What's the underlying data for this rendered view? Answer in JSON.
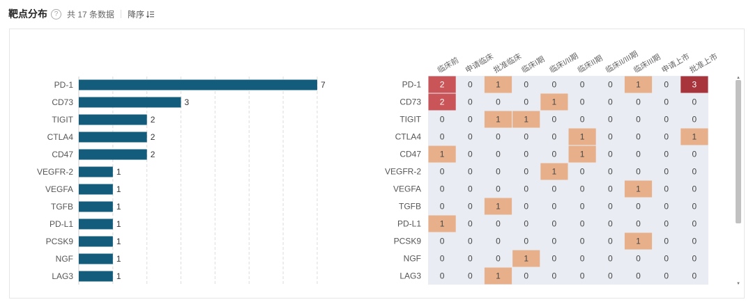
{
  "header": {
    "title": "靶点分布",
    "help_icon": "question-circle-icon",
    "count_text": "共 17 条数据",
    "sort_label": "降序",
    "sort_icon": "sort-descending-icon"
  },
  "colors": {
    "bar": "#135c7b",
    "heat_zero": "#e9edf3",
    "heat_one": "#e8b08a",
    "heat_two": "#c95558",
    "heat_three": "#a8343c"
  },
  "chart_data": [
    {
      "type": "bar",
      "orientation": "horizontal",
      "categories": [
        "PD-1",
        "CD73",
        "TIGIT",
        "CTLA4",
        "CD47",
        "VEGFR-2",
        "VEGFA",
        "TGFB",
        "PD-L1",
        "PCSK9",
        "NGF",
        "LAG3"
      ],
      "values": [
        7,
        3,
        2,
        2,
        2,
        1,
        1,
        1,
        1,
        1,
        1,
        1
      ],
      "xlim": [
        0,
        7
      ],
      "grid": "vertical dashed"
    },
    {
      "type": "heatmap",
      "columns": [
        "临床前",
        "申请临床",
        "批准临床",
        "临床I期",
        "临床I/II期",
        "临床II期",
        "临床II/III期",
        "临床III期",
        "申请上市",
        "批准上市"
      ],
      "rows": [
        "PD-1",
        "CD73",
        "TIGIT",
        "CTLA4",
        "CD47",
        "VEGFR-2",
        "VEGFA",
        "TGFB",
        "PD-L1",
        "PCSK9",
        "NGF",
        "LAG3"
      ],
      "values": [
        [
          2,
          0,
          1,
          0,
          0,
          0,
          0,
          1,
          0,
          3
        ],
        [
          2,
          0,
          0,
          0,
          1,
          0,
          0,
          0,
          0,
          0
        ],
        [
          0,
          0,
          1,
          1,
          0,
          0,
          0,
          0,
          0,
          0
        ],
        [
          0,
          0,
          0,
          0,
          0,
          1,
          0,
          0,
          0,
          1
        ],
        [
          1,
          0,
          0,
          0,
          0,
          1,
          0,
          0,
          0,
          0
        ],
        [
          0,
          0,
          0,
          0,
          1,
          0,
          0,
          0,
          0,
          0
        ],
        [
          0,
          0,
          0,
          0,
          0,
          0,
          0,
          1,
          0,
          0
        ],
        [
          0,
          0,
          1,
          0,
          0,
          0,
          0,
          0,
          0,
          0
        ],
        [
          1,
          0,
          0,
          0,
          0,
          0,
          0,
          0,
          0,
          0
        ],
        [
          0,
          0,
          0,
          0,
          0,
          0,
          0,
          1,
          0,
          0
        ],
        [
          0,
          0,
          0,
          1,
          0,
          0,
          0,
          0,
          0,
          0
        ],
        [
          0,
          0,
          1,
          0,
          0,
          0,
          0,
          0,
          0,
          0
        ]
      ]
    }
  ]
}
